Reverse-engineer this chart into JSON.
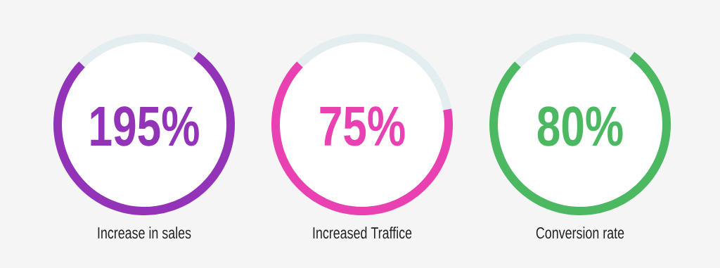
{
  "chart_data": [
    {
      "type": "donut",
      "categories": [
        "Increase in sales",
        null
      ],
      "values": [
        77,
        23
      ],
      "colors": [
        "#9334b8",
        "#e4eef1"
      ],
      "annotations": [
        "195%"
      ]
    },
    {
      "type": "donut",
      "categories": [
        "Increased Traffice",
        null
      ],
      "values": [
        65,
        35
      ],
      "colors": [
        "#e941b2",
        "#e4eef1"
      ],
      "annotations": [
        "75%"
      ]
    },
    {
      "type": "donut",
      "categories": [
        "Conversion rate",
        null
      ],
      "values": [
        77,
        23
      ],
      "colors": [
        "#4db862",
        "#e4eef1"
      ],
      "annotations": [
        "80%"
      ]
    }
  ]
}
